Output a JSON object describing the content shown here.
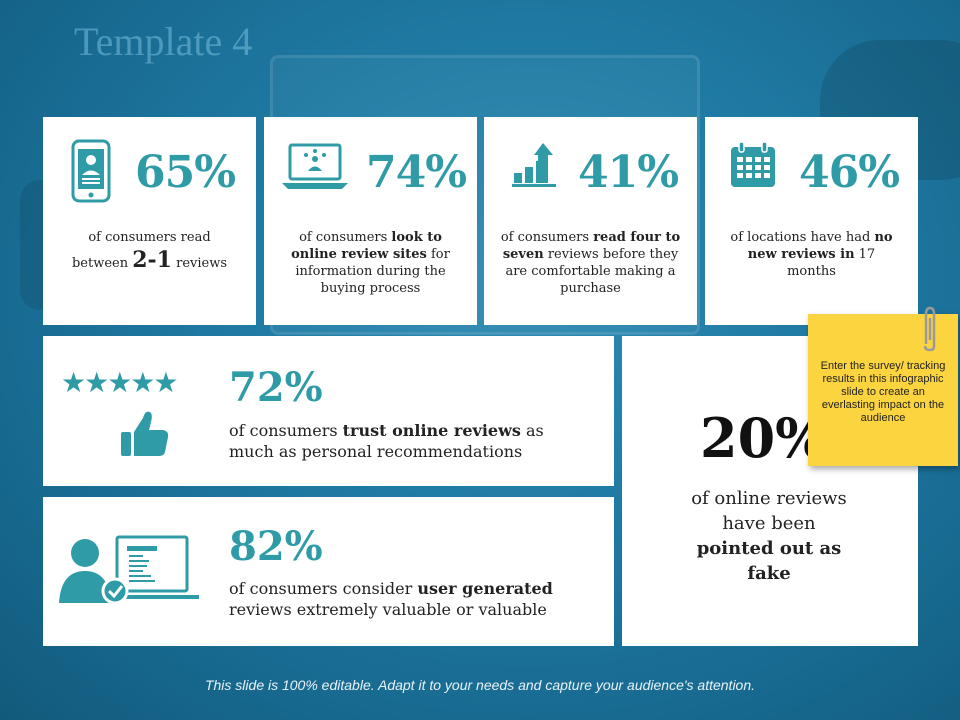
{
  "title": "Template 4",
  "colors": {
    "accent": "#2e9ba7",
    "note": "#fcd43f",
    "background": "#1f7aa3"
  },
  "stats": [
    {
      "icon": "smartphone-user-icon",
      "percent": "65%",
      "desc": {
        "t1": "of consumers read",
        "t2": "between ",
        "big": "2-1",
        "t3": " reviews"
      }
    },
    {
      "icon": "laptop-network-icon",
      "percent": "74%",
      "desc": {
        "t1": "of consumers ",
        "b1": "look to online review sites",
        "t2": " for information during the buying process"
      }
    },
    {
      "icon": "growth-chart-icon",
      "percent": "41%",
      "desc": {
        "t1": "of consumers ",
        "b1": "read four to seven",
        "t2": " reviews before they are comfortable making a purchase"
      }
    },
    {
      "icon": "calendar-icon",
      "percent": "46%",
      "desc": {
        "t1": "of locations have had ",
        "b1": "no new reviews in",
        "t2": " 17 months"
      }
    }
  ],
  "trust": {
    "icon": "thumbs-up-icon",
    "stars": "★★★★★",
    "percent": "72%",
    "t1": "of consumers ",
    "b1": "trust online reviews",
    "t2": " as much as personal recommendations"
  },
  "user_generated": {
    "icon": "user-screen-check-icon",
    "percent": "82%",
    "t1": "of consumers consider ",
    "b1": "user generated",
    "t2": " reviews extremely valuable or valuable"
  },
  "fake": {
    "percent": "20%",
    "t1": "of online reviews have been",
    "b1": "pointed out as fake"
  },
  "note": {
    "text": "Enter the survey/ tracking results in this infographic slide to create an everlasting impact on the audience"
  },
  "footer": "This slide is 100% editable. Adapt it to your needs and capture your audience's attention."
}
